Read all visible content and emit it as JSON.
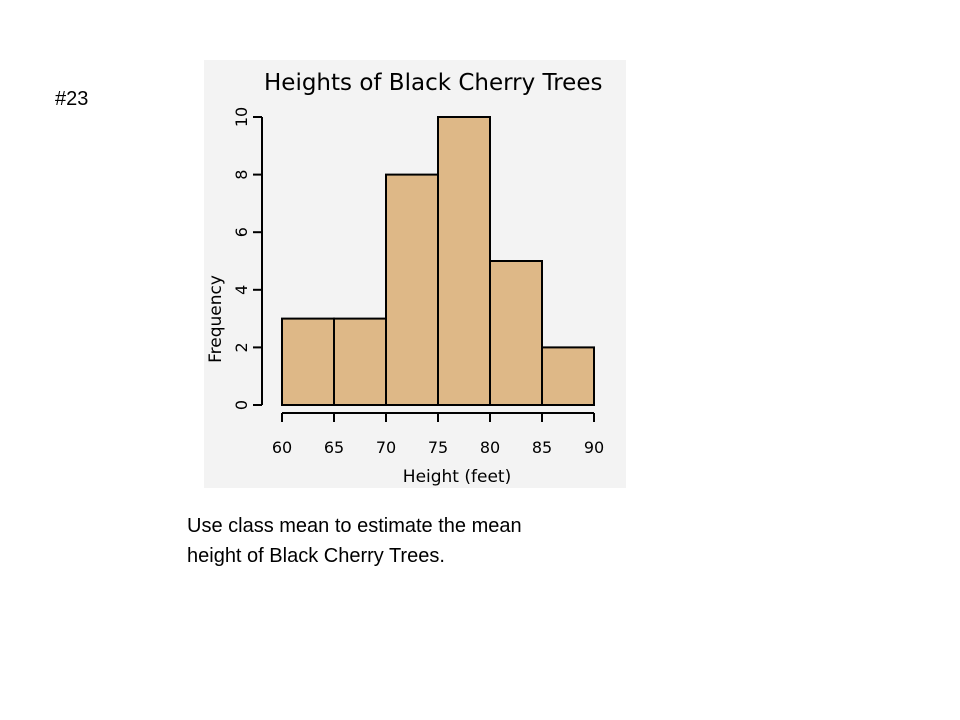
{
  "slide": {
    "problem_number": "#23",
    "question_line1": "Use class mean to estimate the mean",
    "question_line2": "height of Black Cherry Trees."
  },
  "chart_data": {
    "type": "bar",
    "title": "Heights of Black Cherry Trees",
    "xlabel": "Height (feet)",
    "ylabel": "Frequency",
    "bins": [
      {
        "from": 60,
        "to": 65,
        "count": 3
      },
      {
        "from": 65,
        "to": 70,
        "count": 3
      },
      {
        "from": 70,
        "to": 75,
        "count": 8
      },
      {
        "from": 75,
        "to": 80,
        "count": 10
      },
      {
        "from": 80,
        "to": 85,
        "count": 5
      },
      {
        "from": 85,
        "to": 90,
        "count": 2
      }
    ],
    "x_ticks": [
      60,
      65,
      70,
      75,
      80,
      85,
      90
    ],
    "y_ticks": [
      0,
      2,
      4,
      6,
      8,
      10
    ],
    "xlim": [
      60,
      90
    ],
    "ylim": [
      0,
      10
    ],
    "grid": false,
    "colors": {
      "bar_fill": "#deb887",
      "bar_stroke": "#000000",
      "background": "#f3f3f3"
    }
  }
}
